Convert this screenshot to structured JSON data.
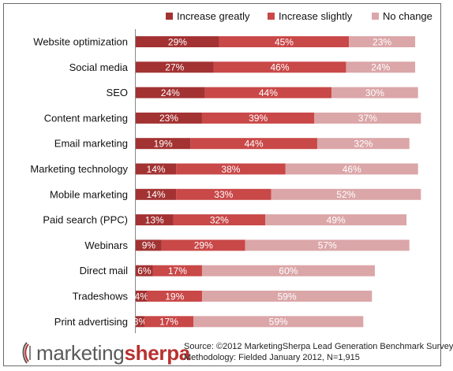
{
  "chart_data": {
    "type": "bar",
    "orientation": "horizontal",
    "stacked": true,
    "categories": [
      "Website optimization",
      "Social media",
      "SEO",
      "Content marketing",
      "Email marketing",
      "Marketing technology",
      "Mobile marketing",
      "Paid search (PPC)",
      "Webinars",
      "Direct mail",
      "Tradeshows",
      "Print advertising"
    ],
    "series": [
      {
        "name": "Increase greatly",
        "color": "#a33232",
        "values": [
          29,
          27,
          24,
          23,
          19,
          14,
          14,
          13,
          9,
          6,
          4,
          3
        ]
      },
      {
        "name": "Increase slightly",
        "color": "#c94848",
        "values": [
          45,
          46,
          44,
          39,
          44,
          38,
          33,
          32,
          29,
          17,
          19,
          17
        ]
      },
      {
        "name": "No change",
        "color": "#dba6a8",
        "values": [
          23,
          24,
          30,
          37,
          32,
          46,
          52,
          49,
          57,
          60,
          59,
          59
        ]
      }
    ],
    "value_suffix": "%",
    "legend_position": "top",
    "grid": false
  },
  "footer": {
    "logo_part1": "marketing",
    "logo_part2": "sherpa",
    "source_line1": "Source: ©2012 MarketingSherpa Lead Generation Benchmark Survey",
    "source_line2": "Methodology: Fielded January 2012, N=1,915"
  }
}
